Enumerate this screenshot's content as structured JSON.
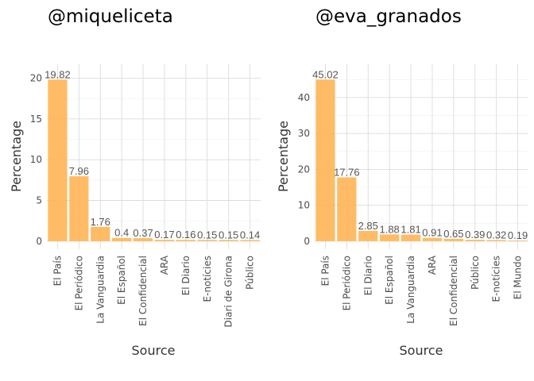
{
  "colors": {
    "bar": "#ffb454",
    "text": "#4d4d4d",
    "grid": "#dcdcdc"
  },
  "chart_data": [
    {
      "type": "bar",
      "title": "@miqueliceta",
      "xlabel": "Source",
      "ylabel": "Percentage",
      "categories": [
        "El País",
        "El Periódico",
        "La Vanguardia",
        "El Español",
        "El Confidencial",
        "ARA",
        "El Diario",
        "E-notícies",
        "Diari de Girona",
        "Público"
      ],
      "values": [
        19.82,
        7.96,
        1.76,
        0.4,
        0.37,
        0.17,
        0.16,
        0.15,
        0.15,
        0.14
      ],
      "data_labels": [
        "19.82",
        "7.96",
        "1.76",
        "0.4",
        "0.37",
        "0.17",
        "0.16",
        "0.15",
        "0.15",
        "0.14"
      ],
      "yticks": [
        0,
        5,
        10,
        15,
        20
      ],
      "ytick_labels": [
        "0",
        "5",
        "10",
        "15",
        "20"
      ],
      "ylim": [
        -0.99,
        21.8
      ],
      "grid": true
    },
    {
      "type": "bar",
      "title": "@eva_granados",
      "xlabel": "Source",
      "ylabel": "Percentage",
      "categories": [
        "El País",
        "El Periódico",
        "El Diario",
        "El Español",
        "La Vanguardia",
        "ARA",
        "El Confidencial",
        "Público",
        "E-notícies",
        "El Mundo"
      ],
      "values": [
        45.02,
        17.76,
        2.85,
        1.88,
        1.81,
        0.91,
        0.65,
        0.39,
        0.32,
        0.19
      ],
      "data_labels": [
        "45.02",
        "17.76",
        "2.85",
        "1.88",
        "1.81",
        "0.91",
        "0.65",
        "0.39",
        "0.32",
        "0.19"
      ],
      "yticks": [
        0,
        10,
        20,
        30,
        40
      ],
      "ytick_labels": [
        "0",
        "10",
        "20",
        "30",
        "40"
      ],
      "ylim": [
        -2.25,
        49.5
      ],
      "grid": true
    }
  ]
}
